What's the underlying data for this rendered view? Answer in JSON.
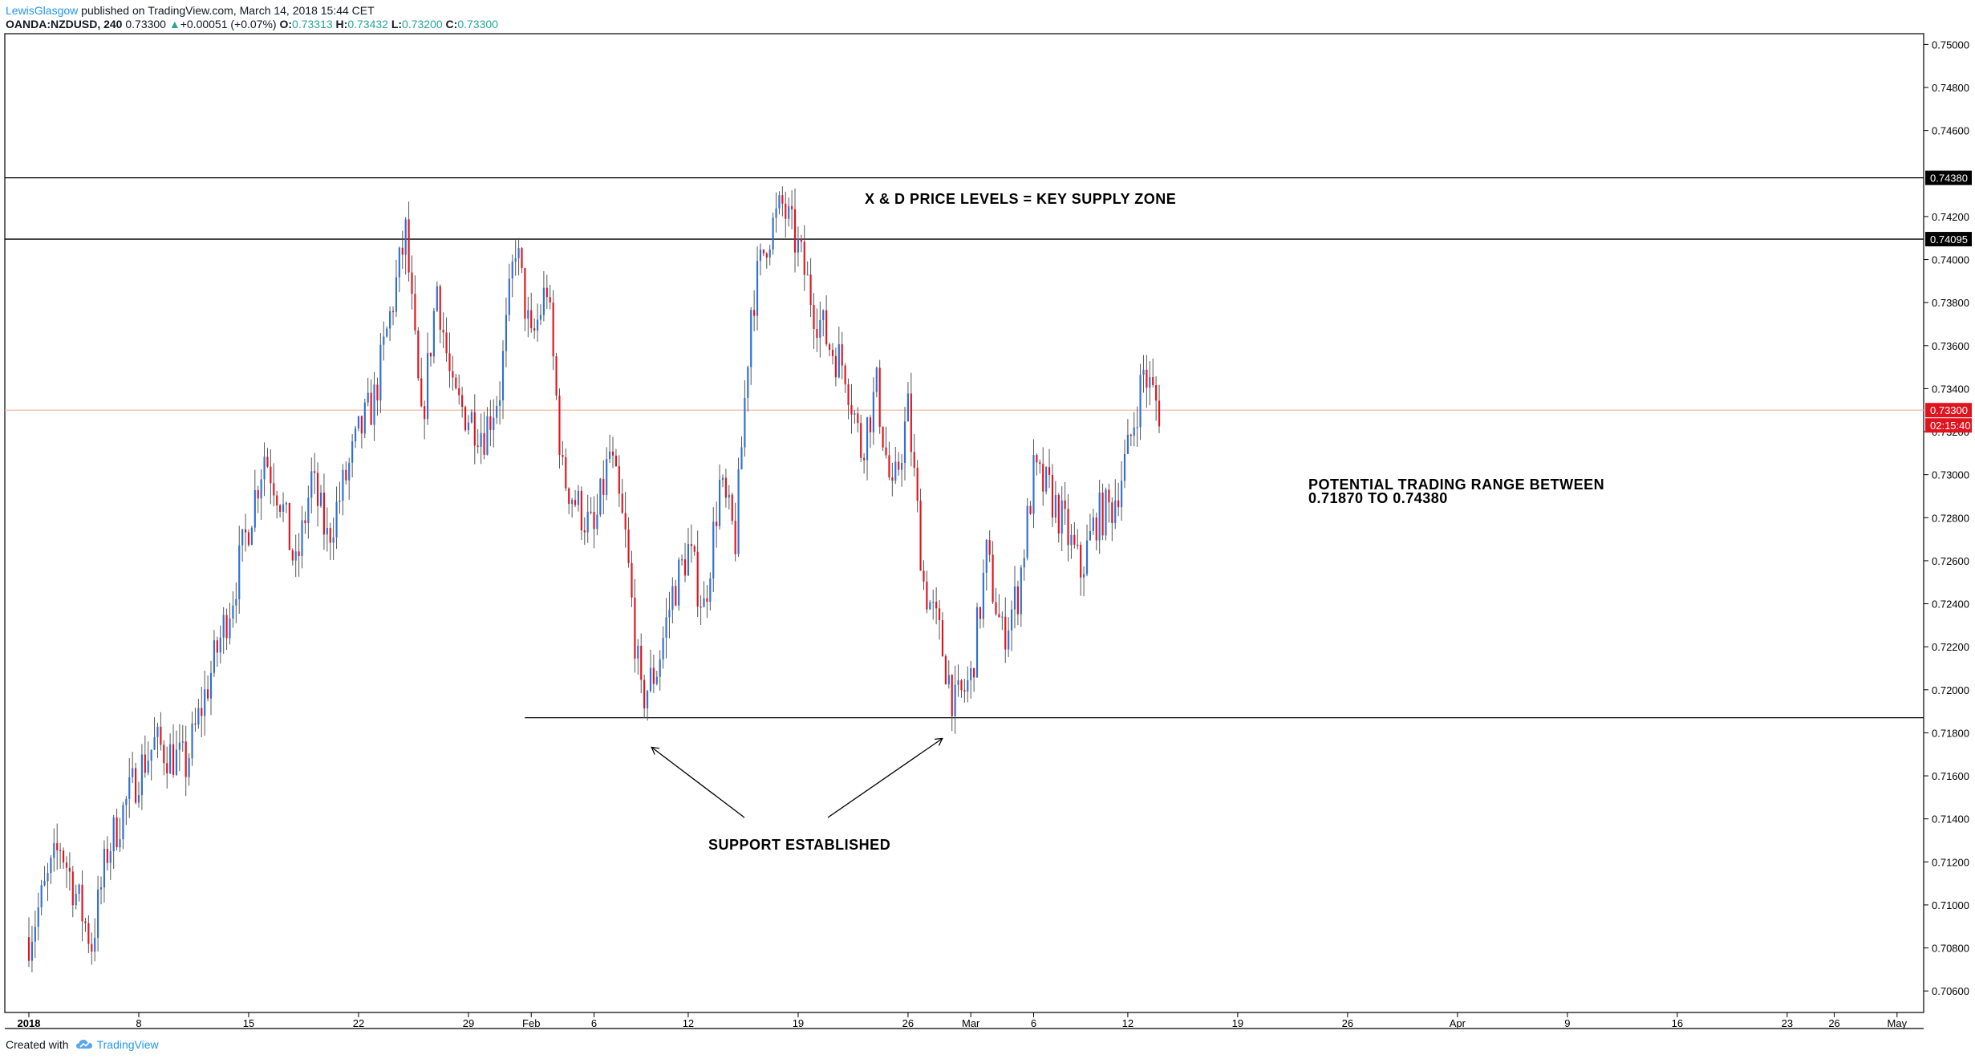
{
  "header": {
    "user": "LewisGlasgow",
    "published": "published on TradingView.com, March 14, 2018 15:44 CET",
    "symbol": "OANDA:NZDUSD, 240",
    "last": "0.73300",
    "change_arrow": "▲",
    "change": "+0.00051 (+0.07%)",
    "o_label": "O:",
    "o_value": "0.73313",
    "h_label": "H:",
    "h_value": "0.73432",
    "l_label": "L:",
    "l_value": "0.73200",
    "c_label": "C:",
    "c_value": "0.73300"
  },
  "footer": {
    "created_with": "Created with",
    "brand": "TradingView",
    "brand_icon": "tradingview-cloud-icon"
  },
  "annotations": {
    "supply_zone": "X & D PRICE LEVELS = KEY SUPPLY ZONE",
    "range_line1": "POTENTIAL TRADING RANGE BETWEEN",
    "range_line2": "0.71870 TO 0.74380",
    "support": "SUPPORT ESTABLISHED"
  },
  "colors": {
    "up": "#2f6fd6",
    "down": "#e0141e",
    "price_line": "#f2b8a8",
    "level_line": "#000000",
    "last_badge": "#e0141e"
  },
  "chart_data": {
    "type": "candlestick",
    "ylim": [
      0.705,
      0.7505
    ],
    "y_ticks": [
      "0.75000",
      "0.74800",
      "0.74600",
      "0.74200",
      "0.74000",
      "0.73800",
      "0.73600",
      "0.73400",
      "0.73200",
      "0.73000",
      "0.72800",
      "0.72600",
      "0.72400",
      "0.72200",
      "0.72000",
      "0.71800",
      "0.71600",
      "0.71400",
      "0.71200",
      "0.71000",
      "0.70800",
      "0.70600"
    ],
    "x_labels": [
      {
        "t": 0,
        "label": "2018",
        "bold": true
      },
      {
        "t": 7,
        "label": "8"
      },
      {
        "t": 14,
        "label": "15"
      },
      {
        "t": 21,
        "label": "22"
      },
      {
        "t": 28,
        "label": "29"
      },
      {
        "t": 32,
        "label": "Feb"
      },
      {
        "t": 36,
        "label": "6"
      },
      {
        "t": 42,
        "label": "12"
      },
      {
        "t": 49,
        "label": "19"
      },
      {
        "t": 56,
        "label": "26"
      },
      {
        "t": 60,
        "label": "Mar"
      },
      {
        "t": 64,
        "label": "6"
      },
      {
        "t": 70,
        "label": "12"
      },
      {
        "t": 77,
        "label": "19"
      },
      {
        "t": 84,
        "label": "26"
      },
      {
        "t": 91,
        "label": "Apr"
      },
      {
        "t": 98,
        "label": "9"
      },
      {
        "t": 105,
        "label": "16"
      },
      {
        "t": 112,
        "label": "23"
      },
      {
        "t": 115,
        "label": "26"
      },
      {
        "t": 119,
        "label": "May"
      }
    ],
    "levels": [
      {
        "price": 0.7438,
        "label": "0.74380"
      },
      {
        "price": 0.74095,
        "label": "0.74095"
      }
    ],
    "support": {
      "price": 0.7187,
      "from_t": 32
    },
    "last_price": {
      "price": 0.733,
      "label": "0.73300",
      "countdown": "02:15:40"
    },
    "path": [
      [
        0,
        0.7085
      ],
      [
        2,
        0.7128
      ],
      [
        4,
        0.7082
      ],
      [
        5,
        0.7125
      ],
      [
        7,
        0.7162
      ],
      [
        8,
        0.7175
      ],
      [
        10,
        0.7165
      ],
      [
        11,
        0.7192
      ],
      [
        13,
        0.7245
      ],
      [
        15,
        0.731
      ],
      [
        16,
        0.729
      ],
      [
        17,
        0.7255
      ],
      [
        18,
        0.7298
      ],
      [
        19,
        0.727
      ],
      [
        21,
        0.7318
      ],
      [
        22,
        0.7335
      ],
      [
        24,
        0.7412
      ],
      [
        25,
        0.7322
      ],
      [
        26,
        0.7388
      ],
      [
        27,
        0.7335
      ],
      [
        29,
        0.732
      ],
      [
        30,
        0.734
      ],
      [
        31,
        0.7408
      ],
      [
        32,
        0.736
      ],
      [
        33,
        0.7388
      ],
      [
        34,
        0.73
      ],
      [
        35,
        0.7285
      ],
      [
        36,
        0.7272
      ],
      [
        37,
        0.731
      ],
      [
        38,
        0.727
      ],
      [
        39,
        0.7195
      ],
      [
        40,
        0.721
      ],
      [
        41,
        0.7245
      ],
      [
        42,
        0.7265
      ],
      [
        43,
        0.7238
      ],
      [
        44,
        0.7295
      ],
      [
        45,
        0.727
      ],
      [
        46,
        0.7378
      ],
      [
        47,
        0.741
      ],
      [
        48,
        0.7425
      ],
      [
        49,
        0.7405
      ],
      [
        50,
        0.7378
      ],
      [
        51,
        0.736
      ],
      [
        52,
        0.735
      ],
      [
        53,
        0.7312
      ],
      [
        54,
        0.734
      ],
      [
        55,
        0.7288
      ],
      [
        56,
        0.733
      ],
      [
        57,
        0.725
      ],
      [
        58,
        0.7225
      ],
      [
        59,
        0.7192
      ],
      [
        60,
        0.7205
      ],
      [
        61,
        0.7262
      ],
      [
        62,
        0.7225
      ],
      [
        63,
        0.7245
      ],
      [
        64,
        0.73
      ],
      [
        65,
        0.7292
      ],
      [
        66,
        0.7275
      ],
      [
        67,
        0.7255
      ],
      [
        68,
        0.728
      ],
      [
        69,
        0.7285
      ],
      [
        70,
        0.731
      ],
      [
        71,
        0.7348
      ],
      [
        72,
        0.733
      ]
    ]
  }
}
